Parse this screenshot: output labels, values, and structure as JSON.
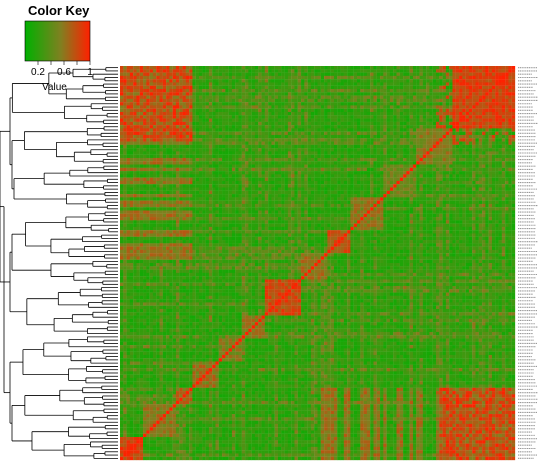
{
  "chart_data": {
    "type": "heatmap",
    "title": "",
    "color_key": {
      "title": "Color Key",
      "xlabel": "Value",
      "ticks": [
        0.2,
        0.4,
        0.6,
        0.8,
        1
      ],
      "tick_labels": [
        "0.2",
        "0.6",
        "1"
      ],
      "range": [
        0,
        1
      ],
      "colors": [
        "#00b000",
        "#808020",
        "#ff2000"
      ]
    },
    "matrix_size": 120,
    "row_labels": [],
    "clusters": [
      {
        "start": 0,
        "end": 7,
        "value": 0.85
      },
      {
        "start": 7,
        "end": 17,
        "value": 0.6
      },
      {
        "start": 17,
        "end": 22,
        "value": 0.65
      },
      {
        "start": 22,
        "end": 30,
        "value": 0.6
      },
      {
        "start": 30,
        "end": 37,
        "value": 0.55
      },
      {
        "start": 37,
        "end": 44,
        "value": 0.6
      },
      {
        "start": 44,
        "end": 55,
        "value": 0.8
      },
      {
        "start": 55,
        "end": 63,
        "value": 0.6
      },
      {
        "start": 63,
        "end": 70,
        "value": 0.75
      },
      {
        "start": 70,
        "end": 80,
        "value": 0.55
      },
      {
        "start": 80,
        "end": 90,
        "value": 0.5
      },
      {
        "start": 90,
        "end": 101,
        "value": 0.55
      },
      {
        "start": 101,
        "end": 120,
        "value": 0.85
      }
    ],
    "red_block_rows": [
      0,
      22
    ],
    "red_block_cols": [
      97,
      120
    ],
    "dendrogram": "row",
    "legend_position": "top-left",
    "grid": false
  }
}
